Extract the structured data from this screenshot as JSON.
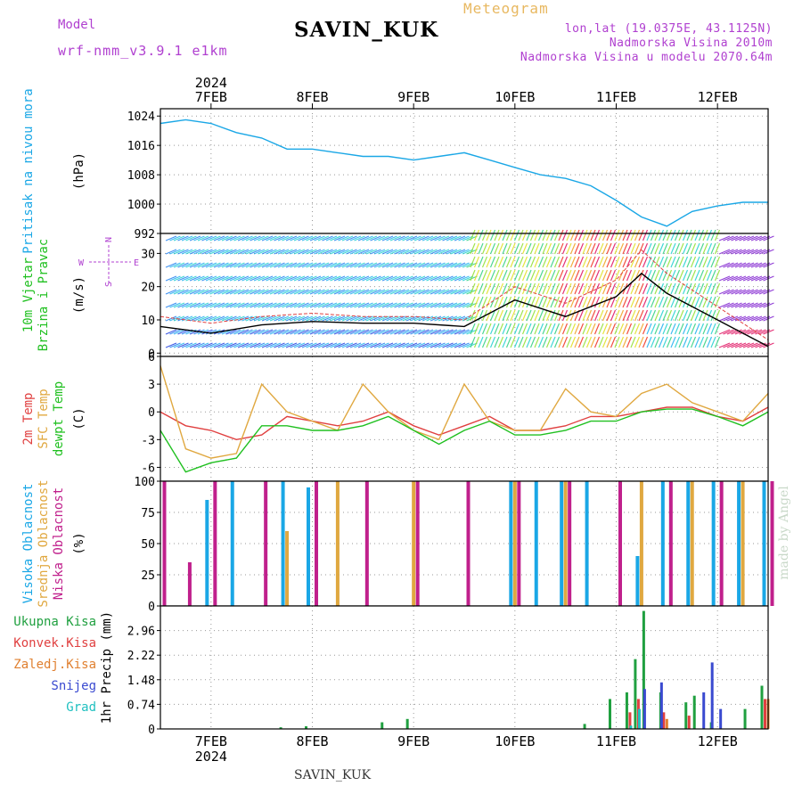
{
  "header": {
    "title": "SAVIN_KUK",
    "model_label": "Model",
    "model_value": "wrf-nmm_v3.9.1 e1km",
    "meteogram_label": "Meteogram",
    "lonlat": "lon,lat (19.0375E, 43.1125N)",
    "altitude": "Nadmorska Visina 2010m",
    "model_altitude": "Nadmorska Visina u modelu 2070.64m",
    "watermark": "made by Angel",
    "footer": "SAVIN_KUK"
  },
  "colors": {
    "pressure": "#1aa7e6",
    "wind_speed": "#000000",
    "wind_gust": "#e04040",
    "temp_2m": "#e04040",
    "temp_sfc": "#e0a840",
    "dewpoint": "#20c020",
    "cloud_high": "#1aa7e6",
    "cloud_mid": "#e0a840",
    "cloud_low": "#c0208c",
    "precip_total": "#20a040",
    "precip_conv": "#e04040",
    "precip_freezing": "#e08030",
    "precip_snow": "#3a4ad0",
    "precip_hail": "#20c0c0",
    "labels_blue": "#1aa7e6",
    "labels_green": "#20c020",
    "labels_purple": "#b040d0"
  },
  "chart_data": {
    "x_axis": {
      "start": "2024-02-06 12:00",
      "end": "2024-02-12 12:00",
      "top_year": "2024",
      "bottom_year": "2024",
      "ticks": [
        "7FEB",
        "8FEB",
        "9FEB",
        "10FEB",
        "11FEB",
        "12FEB"
      ]
    },
    "panels": [
      {
        "id": "pressure",
        "type": "line",
        "ylabels": [
          "Pritisak na nivou mora"
        ],
        "unit": "(hPa)",
        "ylim": [
          992,
          1026
        ],
        "yticks": [
          "1024",
          "1016",
          "1008",
          "1000",
          "992"
        ],
        "grid": true,
        "series": [
          {
            "x": [
              "2024-02-06 12:00",
              "2024-02-06 18:00",
              "2024-02-07 00:00",
              "2024-02-07 06:00",
              "2024-02-07 12:00",
              "2024-02-07 18:00",
              "2024-02-08 00:00",
              "2024-02-08 06:00",
              "2024-02-08 12:00",
              "2024-02-08 18:00",
              "2024-02-09 00:00",
              "2024-02-09 06:00",
              "2024-02-09 12:00",
              "2024-02-09 18:00",
              "2024-02-10 00:00",
              "2024-02-10 06:00",
              "2024-02-10 12:00",
              "2024-02-10 18:00",
              "2024-02-11 00:00",
              "2024-02-11 06:00",
              "2024-02-11 12:00",
              "2024-02-11 18:00",
              "2024-02-12 00:00",
              "2024-02-12 06:00",
              "2024-02-12 12:00"
            ],
            "y": [
              1022,
              1023,
              1022,
              1019.5,
              1018,
              1015,
              1015,
              1014,
              1013,
              1013,
              1012,
              1013,
              1014,
              1012,
              1010,
              1008,
              1007,
              1005,
              1001,
              996.5,
              994,
              998,
              999.5,
              1000.5,
              1000.5
            ]
          }
        ]
      },
      {
        "id": "wind",
        "type": "line",
        "ylabels": [
          "10m Vjetar",
          "Brzina i Pravac"
        ],
        "unit": "(m/s)",
        "ylim": [
          -1,
          36
        ],
        "yticks": [
          "30",
          "20",
          "10",
          "0"
        ],
        "compass": {
          "north": "N",
          "south": "S",
          "west": "W",
          "east": "E"
        },
        "grid": true,
        "series": [
          {
            "x": [
              "2024-02-06 12:00",
              "2024-02-07 00:00",
              "2024-02-07 12:00",
              "2024-02-08 00:00",
              "2024-02-08 12:00",
              "2024-02-09 00:00",
              "2024-02-09 12:00",
              "2024-02-10 00:00",
              "2024-02-10 12:00",
              "2024-02-11 00:00",
              "2024-02-11 06:00",
              "2024-02-11 12:00",
              "2024-02-12 00:00",
              "2024-02-12 12:00"
            ],
            "y": [
              8,
              6,
              8.5,
              9.5,
              9,
              9,
              8,
              16,
              11,
              17,
              24,
              18,
              10,
              2
            ]
          },
          {
            "x": [
              "2024-02-06 12:00",
              "2024-02-07 00:00",
              "2024-02-07 12:00",
              "2024-02-08 00:00",
              "2024-02-08 12:00",
              "2024-02-09 00:00",
              "2024-02-09 12:00",
              "2024-02-10 00:00",
              "2024-02-10 12:00",
              "2024-02-11 00:00",
              "2024-02-11 06:00",
              "2024-02-11 12:00",
              "2024-02-12 00:00",
              "2024-02-12 12:00"
            ],
            "y": [
              11,
              9,
              11,
              12,
              11,
              11,
              10,
              20,
              15,
              22,
              31,
              24,
              14,
              4
            ]
          }
        ]
      },
      {
        "id": "temperature",
        "type": "line",
        "ylabels": [
          "2m Temp",
          "SFC Temp",
          "dewpt Temp"
        ],
        "unit": "(C)",
        "ylim": [
          -7.5,
          6
        ],
        "yticks": [
          "6",
          "3",
          "0",
          "-3",
          "-6"
        ],
        "grid": true,
        "series": [
          {
            "x": [
              "2024-02-06 12:00",
              "2024-02-06 18:00",
              "2024-02-07 00:00",
              "2024-02-07 06:00",
              "2024-02-07 12:00",
              "2024-02-07 18:00",
              "2024-02-08 00:00",
              "2024-02-08 06:00",
              "2024-02-08 12:00",
              "2024-02-08 18:00",
              "2024-02-09 00:00",
              "2024-02-09 06:00",
              "2024-02-09 12:00",
              "2024-02-09 18:00",
              "2024-02-10 00:00",
              "2024-02-10 06:00",
              "2024-02-10 12:00",
              "2024-02-10 18:00",
              "2024-02-11 00:00",
              "2024-02-11 06:00",
              "2024-02-11 12:00",
              "2024-02-11 18:00",
              "2024-02-12 00:00",
              "2024-02-12 06:00",
              "2024-02-12 12:00"
            ],
            "y": [
              0,
              -1.5,
              -2,
              -3,
              -2.5,
              -0.5,
              -1,
              -1.5,
              -1,
              0,
              -1.5,
              -2.5,
              -1.5,
              -0.5,
              -2,
              -2,
              -1.5,
              -0.5,
              -0.5,
              0,
              0.5,
              0.5,
              -0.5,
              -1,
              0.5
            ]
          },
          {
            "x": [
              "2024-02-06 12:00",
              "2024-02-06 18:00",
              "2024-02-07 00:00",
              "2024-02-07 06:00",
              "2024-02-07 12:00",
              "2024-02-07 18:00",
              "2024-02-08 00:00",
              "2024-02-08 06:00",
              "2024-02-08 12:00",
              "2024-02-08 18:00",
              "2024-02-09 00:00",
              "2024-02-09 06:00",
              "2024-02-09 12:00",
              "2024-02-09 18:00",
              "2024-02-10 00:00",
              "2024-02-10 06:00",
              "2024-02-10 12:00",
              "2024-02-10 18:00",
              "2024-02-11 00:00",
              "2024-02-11 06:00",
              "2024-02-11 12:00",
              "2024-02-11 18:00",
              "2024-02-12 00:00",
              "2024-02-12 06:00",
              "2024-02-12 12:00"
            ],
            "y": [
              5,
              -4,
              -5,
              -4.5,
              3,
              0,
              -1,
              -2,
              3,
              0,
              -2,
              -3,
              3,
              -1,
              -2,
              -2,
              2.5,
              0,
              -0.5,
              2,
              3,
              1,
              0,
              -1,
              2
            ]
          },
          {
            "x": [
              "2024-02-06 12:00",
              "2024-02-06 18:00",
              "2024-02-07 00:00",
              "2024-02-07 06:00",
              "2024-02-07 12:00",
              "2024-02-07 18:00",
              "2024-02-08 00:00",
              "2024-02-08 06:00",
              "2024-02-08 12:00",
              "2024-02-08 18:00",
              "2024-02-09 00:00",
              "2024-02-09 06:00",
              "2024-02-09 12:00",
              "2024-02-09 18:00",
              "2024-02-10 00:00",
              "2024-02-10 06:00",
              "2024-02-10 12:00",
              "2024-02-10 18:00",
              "2024-02-11 00:00",
              "2024-02-11 06:00",
              "2024-02-11 12:00",
              "2024-02-11 18:00",
              "2024-02-12 00:00",
              "2024-02-12 06:00",
              "2024-02-12 12:00"
            ],
            "y": [
              -2,
              -6.5,
              -5.5,
              -5,
              -1.5,
              -1.5,
              -2,
              -2,
              -1.5,
              -0.5,
              -2,
              -3.5,
              -2,
              -1,
              -2.5,
              -2.5,
              -2,
              -1,
              -1,
              0,
              0.3,
              0.3,
              -0.5,
              -1.5,
              0
            ]
          }
        ]
      },
      {
        "id": "clouds",
        "type": "bar",
        "ylabels": [
          "Visoka Oblacnost",
          "Srednja Oblacnost",
          "Niska Oblacnost"
        ],
        "unit": "(%)",
        "ylim": [
          0,
          100
        ],
        "yticks": [
          "100",
          "75",
          "50",
          "25",
          "0"
        ],
        "grid": true,
        "series": [
          {
            "x": [
              "2024-02-07 00:00",
              "2024-02-07 06:00",
              "2024-02-07 12:00",
              "2024-02-07 18:00",
              "2024-02-08 00:00",
              "2024-02-10 00:00",
              "2024-02-10 06:00",
              "2024-02-10 12:00",
              "2024-02-10 18:00",
              "2024-02-11 06:00",
              "2024-02-11 12:00",
              "2024-02-11 18:00",
              "2024-02-12 00:00",
              "2024-02-12 06:00",
              "2024-02-12 12:00"
            ],
            "y": [
              85,
              100,
              0,
              100,
              95,
              100,
              100,
              100,
              100,
              40,
              100,
              100,
              100,
              100,
              100
            ]
          },
          {
            "x": [
              "2024-02-07 18:00",
              "2024-02-08 06:00",
              "2024-02-09 00:00",
              "2024-02-10 00:00",
              "2024-02-10 12:00",
              "2024-02-11 06:00",
              "2024-02-11 18:00",
              "2024-02-12 06:00"
            ],
            "y": [
              60,
              100,
              100,
              100,
              100,
              100,
              100,
              100
            ]
          },
          {
            "x": [
              "2024-02-06 12:00",
              "2024-02-06 18:00",
              "2024-02-07 00:00",
              "2024-02-07 12:00",
              "2024-02-08 00:00",
              "2024-02-08 12:00",
              "2024-02-09 00:00",
              "2024-02-09 12:00",
              "2024-02-10 00:00",
              "2024-02-10 12:00",
              "2024-02-11 00:00",
              "2024-02-11 12:00",
              "2024-02-12 00:00",
              "2024-02-12 12:00"
            ],
            "y": [
              100,
              35,
              100,
              100,
              100,
              100,
              100,
              100,
              100,
              100,
              100,
              100,
              100,
              100
            ]
          }
        ]
      },
      {
        "id": "precip",
        "type": "bar",
        "ylabels": [
          "Ukupna Kisa",
          "Konvek.Kisa",
          "Zaledj.Kisa",
          "Snijeg",
          "Grad"
        ],
        "unit": "1hr Precip (mm)",
        "ylim": [
          0,
          3.7
        ],
        "yticks": [
          "2.96",
          "2.22",
          "1.48",
          "0.74",
          "0"
        ],
        "grid": true,
        "series": [
          {
            "x": [
              "2024-02-07 18:00",
              "2024-02-08 00:00",
              "2024-02-08 18:00",
              "2024-02-09 00:00",
              "2024-02-10 18:00",
              "2024-02-11 00:00",
              "2024-02-11 04:00",
              "2024-02-11 06:00",
              "2024-02-11 08:00",
              "2024-02-11 12:00",
              "2024-02-11 18:00",
              "2024-02-11 20:00",
              "2024-02-12 00:00",
              "2024-02-12 08:00",
              "2024-02-12 12:00"
            ],
            "y": [
              0.05,
              0.08,
              0.2,
              0.3,
              0.15,
              0.9,
              1.1,
              2.1,
              3.55,
              1.1,
              0.8,
              1.0,
              0.2,
              0.6,
              1.3
            ]
          },
          {
            "x": [
              "2024-02-11 04:00",
              "2024-02-11 06:00",
              "2024-02-11 12:00",
              "2024-02-11 18:00",
              "2024-02-12 12:00"
            ],
            "y": [
              0.5,
              0.9,
              0.5,
              0.4,
              0.9
            ]
          },
          {
            "x": [
              "2024-02-11 12:00",
              "2024-02-12 12:00"
            ],
            "y": [
              0.3,
              0.9
            ]
          },
          {
            "x": [
              "2024-02-11 06:00",
              "2024-02-11 10:00",
              "2024-02-11 20:00",
              "2024-02-11 22:00",
              "2024-02-12 00:00"
            ],
            "y": [
              1.2,
              1.4,
              1.1,
              2.0,
              0.6
            ]
          },
          {
            "x": [
              "2024-02-11 02:00",
              "2024-02-11 04:00"
            ],
            "y": [
              0.1,
              0.6
            ]
          }
        ]
      }
    ]
  }
}
